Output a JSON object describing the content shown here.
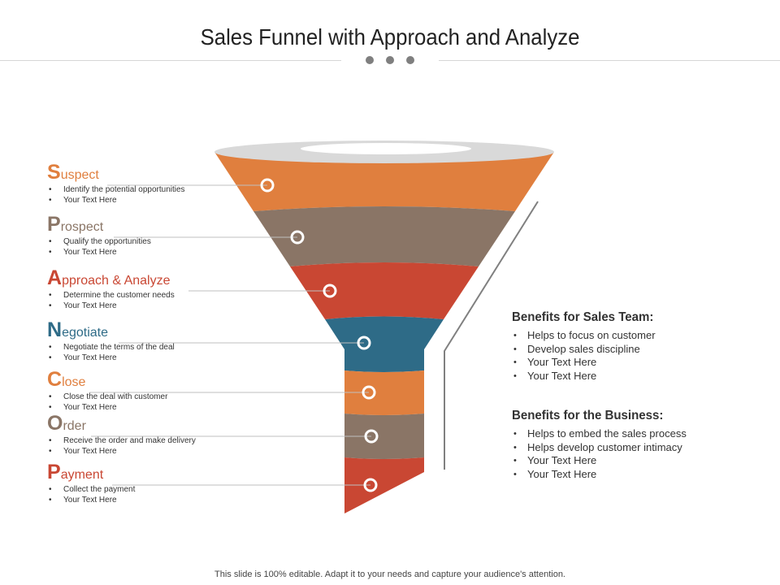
{
  "title": "Sales Funnel with Approach and Analyze",
  "stages": [
    {
      "initial": "S",
      "rest": "uspect",
      "bullets": [
        "Identify the potential opportunities",
        "Your Text Here"
      ],
      "color": "#e07f3e"
    },
    {
      "initial": "P",
      "rest": "rospect",
      "bullets": [
        "Qualify the opportunities",
        "Your Text Here"
      ],
      "color": "#8a7566"
    },
    {
      "initial": "A",
      "rest": "pproach & Analyze",
      "bullets": [
        "Determine the customer needs",
        "Your Text Here"
      ],
      "color": "#c94733"
    },
    {
      "initial": "N",
      "rest": "egotiate",
      "bullets": [
        "Negotiate the terms of the deal",
        "Your Text Here"
      ],
      "color": "#2e6b87"
    },
    {
      "initial": "C",
      "rest": "lose",
      "bullets": [
        "Close the deal with customer",
        "Your Text Here"
      ],
      "color": "#e07f3e"
    },
    {
      "initial": "O",
      "rest": "rder",
      "bullets": [
        "Receive the order and make delivery",
        "Your Text Here"
      ],
      "color": "#8a7566"
    },
    {
      "initial": "P",
      "rest": "ayment",
      "bullets": [
        "Collect the payment",
        "Your Text Here"
      ],
      "color": "#c94733"
    }
  ],
  "benefits_team": {
    "heading": "Benefits for Sales Team:",
    "items": [
      "Helps to focus on customer",
      "Develop sales discipline",
      "Your Text Here",
      "Your Text Here"
    ]
  },
  "benefits_business": {
    "heading": "Benefits for the Business:",
    "items": [
      "Helps to embed the sales process",
      "Helps develop customer intimacy",
      "Your Text Here",
      "Your Text Here"
    ]
  },
  "footer": "This slide is 100% editable. Adapt it to your needs and capture your audience's attention.",
  "colors": {
    "orange": "#e07f3e",
    "brown": "#8a7566",
    "red": "#c94733",
    "teal": "#2e6b87",
    "rim": "#d9d9d9",
    "connector": "#bfbfbf"
  }
}
